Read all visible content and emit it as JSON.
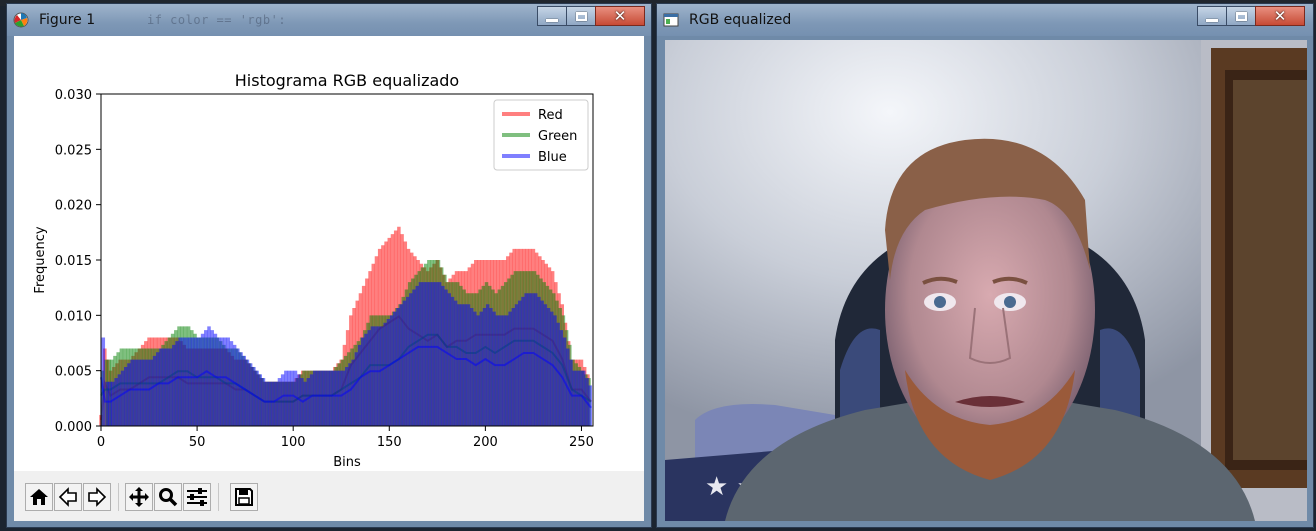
{
  "desktop": {
    "code_ghost": "if color == 'rgb':"
  },
  "figure_window": {
    "title": "Figure 1",
    "icon": "matplotlib-icon",
    "toolbar": [
      {
        "icon": "home-icon",
        "name": "home"
      },
      {
        "icon": "back-arrow-icon",
        "name": "back"
      },
      {
        "icon": "forward-arrow-icon",
        "name": "forward"
      },
      {
        "icon": "pan-icon",
        "name": "pan"
      },
      {
        "icon": "zoom-icon",
        "name": "zoom"
      },
      {
        "icon": "sliders-icon",
        "name": "configure-subplots"
      },
      {
        "icon": "save-icon",
        "name": "save"
      }
    ]
  },
  "image_window": {
    "title": "RGB equalized",
    "icon": "opencv-window-icon"
  },
  "colors": {
    "red": "#ff0000",
    "green": "#008000",
    "blue": "#0000ff"
  },
  "chart_data": {
    "type": "line",
    "title": "Histograma RGB equalizado",
    "xlabel": "Bins",
    "ylabel": "Frequency",
    "xlim": [
      0,
      256
    ],
    "ylim": [
      0,
      0.03
    ],
    "xticks": [
      "0",
      "50",
      "100",
      "150",
      "200",
      "250"
    ],
    "yticks": [
      "0.000",
      "0.005",
      "0.010",
      "0.015",
      "0.020",
      "0.025",
      "0.030"
    ],
    "legend_position": "top-right",
    "series": [
      {
        "name": "Red",
        "color": "#ff0000",
        "alpha": 0.5,
        "x": [
          0,
          2,
          5,
          10,
          15,
          20,
          25,
          30,
          35,
          40,
          45,
          50,
          55,
          60,
          65,
          70,
          75,
          80,
          85,
          90,
          95,
          100,
          105,
          110,
          115,
          120,
          125,
          130,
          135,
          140,
          145,
          150,
          155,
          160,
          165,
          170,
          175,
          180,
          185,
          190,
          195,
          200,
          205,
          210,
          215,
          220,
          225,
          230,
          235,
          240,
          245,
          250,
          255
        ],
        "y": [
          0.001,
          0.007,
          0.005,
          0.006,
          0.006,
          0.007,
          0.008,
          0.008,
          0.008,
          0.008,
          0.007,
          0.007,
          0.007,
          0.007,
          0.007,
          0.006,
          0.006,
          0.005,
          0.004,
          0.004,
          0.004,
          0.004,
          0.005,
          0.005,
          0.005,
          0.005,
          0.006,
          0.01,
          0.012,
          0.014,
          0.016,
          0.017,
          0.018,
          0.016,
          0.015,
          0.014,
          0.015,
          0.013,
          0.014,
          0.014,
          0.015,
          0.015,
          0.015,
          0.015,
          0.016,
          0.016,
          0.016,
          0.015,
          0.014,
          0.011,
          0.006,
          0.006,
          0.004
        ]
      },
      {
        "name": "Green",
        "color": "#008000",
        "alpha": 0.5,
        "x": [
          0,
          2,
          5,
          10,
          15,
          20,
          25,
          30,
          35,
          40,
          45,
          50,
          55,
          60,
          65,
          70,
          75,
          80,
          85,
          90,
          95,
          100,
          105,
          110,
          115,
          120,
          125,
          130,
          135,
          140,
          145,
          150,
          155,
          160,
          165,
          170,
          175,
          180,
          185,
          190,
          195,
          200,
          205,
          210,
          215,
          220,
          225,
          230,
          235,
          240,
          245,
          250,
          255
        ],
        "y": [
          0.005,
          0.006,
          0.006,
          0.007,
          0.007,
          0.007,
          0.007,
          0.007,
          0.008,
          0.009,
          0.009,
          0.008,
          0.008,
          0.008,
          0.007,
          0.007,
          0.006,
          0.005,
          0.004,
          0.004,
          0.004,
          0.004,
          0.005,
          0.005,
          0.005,
          0.005,
          0.006,
          0.007,
          0.008,
          0.01,
          0.01,
          0.01,
          0.011,
          0.013,
          0.014,
          0.015,
          0.015,
          0.013,
          0.013,
          0.012,
          0.012,
          0.013,
          0.012,
          0.013,
          0.014,
          0.014,
          0.014,
          0.013,
          0.012,
          0.01,
          0.006,
          0.005,
          0.004
        ]
      },
      {
        "name": "Blue",
        "color": "#0000ff",
        "alpha": 0.5,
        "x": [
          0,
          2,
          5,
          10,
          15,
          20,
          25,
          30,
          35,
          40,
          45,
          50,
          55,
          60,
          65,
          70,
          75,
          80,
          85,
          90,
          95,
          100,
          105,
          110,
          115,
          120,
          125,
          130,
          135,
          140,
          145,
          150,
          155,
          160,
          165,
          170,
          175,
          180,
          185,
          190,
          195,
          200,
          205,
          210,
          215,
          220,
          225,
          230,
          235,
          240,
          245,
          250,
          255
        ],
        "y": [
          0.008,
          0.004,
          0.004,
          0.005,
          0.006,
          0.006,
          0.006,
          0.007,
          0.007,
          0.008,
          0.008,
          0.008,
          0.009,
          0.008,
          0.008,
          0.007,
          0.006,
          0.005,
          0.004,
          0.004,
          0.005,
          0.005,
          0.004,
          0.005,
          0.005,
          0.005,
          0.005,
          0.006,
          0.008,
          0.009,
          0.009,
          0.01,
          0.011,
          0.012,
          0.013,
          0.013,
          0.013,
          0.012,
          0.011,
          0.011,
          0.01,
          0.011,
          0.01,
          0.01,
          0.011,
          0.012,
          0.012,
          0.011,
          0.01,
          0.008,
          0.005,
          0.005,
          0.003
        ]
      }
    ]
  }
}
